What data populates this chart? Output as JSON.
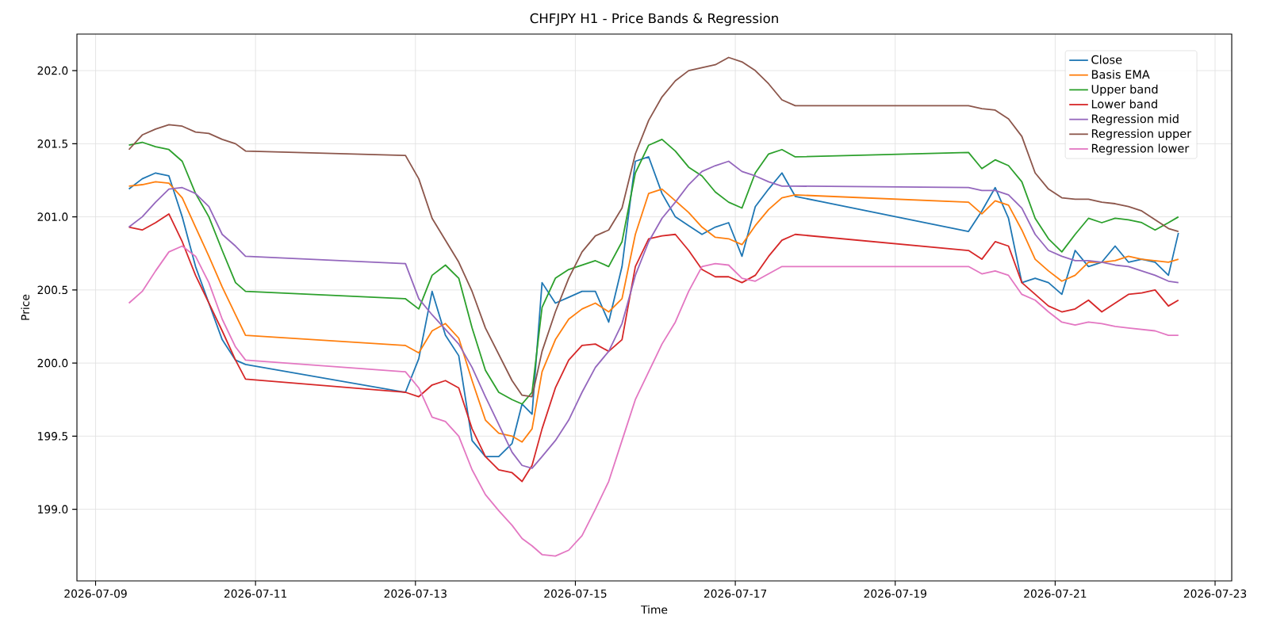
{
  "chart_data": {
    "type": "line",
    "title": "CHFJPY H1 - Price Bands & Regression",
    "xlabel": "Time",
    "ylabel": "Price",
    "x": [
      "2026-07-09T10:00",
      "2026-07-09T14:00",
      "2026-07-09T18:00",
      "2026-07-09T22:00",
      "2026-07-10T02:00",
      "2026-07-10T06:00",
      "2026-07-10T10:00",
      "2026-07-10T14:00",
      "2026-07-10T18:00",
      "2026-07-10T21:00",
      "2026-07-12T21:00",
      "2026-07-13T01:00",
      "2026-07-13T05:00",
      "2026-07-13T09:00",
      "2026-07-13T13:00",
      "2026-07-13T17:00",
      "2026-07-13T21:00",
      "2026-07-14T01:00",
      "2026-07-14T05:00",
      "2026-07-14T08:00",
      "2026-07-14T11:00",
      "2026-07-14T14:00",
      "2026-07-14T18:00",
      "2026-07-14T22:00",
      "2026-07-15T02:00",
      "2026-07-15T06:00",
      "2026-07-15T10:00",
      "2026-07-15T14:00",
      "2026-07-15T18:00",
      "2026-07-15T22:00",
      "2026-07-16T02:00",
      "2026-07-16T06:00",
      "2026-07-16T10:00",
      "2026-07-16T14:00",
      "2026-07-16T18:00",
      "2026-07-16T22:00",
      "2026-07-17T02:00",
      "2026-07-17T06:00",
      "2026-07-17T10:00",
      "2026-07-17T14:00",
      "2026-07-17T18:00",
      "2026-07-19T22:00",
      "2026-07-20T02:00",
      "2026-07-20T06:00",
      "2026-07-20T10:00",
      "2026-07-20T14:00",
      "2026-07-20T18:00",
      "2026-07-20T22:00",
      "2026-07-21T02:00",
      "2026-07-21T06:00",
      "2026-07-21T10:00",
      "2026-07-21T14:00",
      "2026-07-21T18:00",
      "2026-07-21T22:00",
      "2026-07-22T02:00",
      "2026-07-22T06:00",
      "2026-07-22T10:00",
      "2026-07-22T13:00"
    ],
    "series": [
      {
        "name": "Close",
        "color": "#1f77b4",
        "values": [
          201.19,
          201.26,
          201.3,
          201.28,
          201.0,
          200.66,
          200.41,
          200.16,
          200.02,
          199.99,
          199.8,
          200.03,
          200.49,
          200.19,
          200.05,
          199.47,
          199.36,
          199.36,
          199.45,
          199.72,
          199.65,
          200.55,
          200.41,
          200.45,
          200.49,
          200.49,
          200.28,
          200.66,
          201.38,
          201.41,
          201.16,
          201.0,
          200.94,
          200.88,
          200.93,
          200.96,
          200.73,
          201.07,
          201.19,
          201.3,
          201.14,
          200.9,
          201.04,
          201.2,
          200.99,
          200.55,
          200.58,
          200.55,
          200.47,
          200.77,
          200.66,
          200.69,
          200.8,
          200.69,
          200.71,
          200.69,
          200.6,
          200.89
        ]
      },
      {
        "name": "Basis EMA",
        "color": "#ff7f0e",
        "values": [
          201.21,
          201.22,
          201.24,
          201.23,
          201.13,
          200.93,
          200.73,
          200.52,
          200.33,
          200.19,
          200.12,
          200.07,
          200.22,
          200.27,
          200.17,
          199.88,
          199.61,
          199.52,
          199.5,
          199.46,
          199.55,
          199.94,
          200.16,
          200.3,
          200.37,
          200.41,
          200.35,
          200.44,
          200.88,
          201.16,
          201.19,
          201.11,
          201.03,
          200.93,
          200.86,
          200.85,
          200.81,
          200.94,
          201.05,
          201.13,
          201.15,
          201.1,
          201.02,
          201.11,
          201.08,
          200.91,
          200.71,
          200.63,
          200.56,
          200.6,
          200.69,
          200.69,
          200.7,
          200.73,
          200.71,
          200.7,
          200.69,
          200.71
        ]
      },
      {
        "name": "Upper band",
        "color": "#2ca02c",
        "values": [
          201.49,
          201.51,
          201.48,
          201.46,
          201.38,
          201.16,
          201.0,
          200.77,
          200.55,
          200.49,
          200.44,
          200.37,
          200.6,
          200.67,
          200.58,
          200.24,
          199.95,
          199.8,
          199.75,
          199.72,
          199.8,
          200.38,
          200.58,
          200.64,
          200.67,
          200.7,
          200.66,
          200.83,
          201.3,
          201.49,
          201.53,
          201.45,
          201.34,
          201.28,
          201.17,
          201.1,
          201.06,
          201.3,
          201.43,
          201.46,
          201.41,
          201.44,
          201.33,
          201.39,
          201.35,
          201.24,
          200.99,
          200.85,
          200.76,
          200.88,
          200.99,
          200.96,
          200.99,
          200.98,
          200.96,
          200.91,
          200.96,
          201.0
        ]
      },
      {
        "name": "Lower band",
        "color": "#d62728",
        "values": [
          200.93,
          200.91,
          200.96,
          201.02,
          200.83,
          200.6,
          200.41,
          200.22,
          200.02,
          199.89,
          199.8,
          199.77,
          199.85,
          199.88,
          199.83,
          199.55,
          199.36,
          199.27,
          199.25,
          199.19,
          199.3,
          199.55,
          199.83,
          200.02,
          200.12,
          200.13,
          200.08,
          200.16,
          200.66,
          200.85,
          200.87,
          200.88,
          200.77,
          200.64,
          200.59,
          200.59,
          200.55,
          200.6,
          200.73,
          200.84,
          200.88,
          200.77,
          200.71,
          200.83,
          200.8,
          200.55,
          200.47,
          200.39,
          200.35,
          200.37,
          200.43,
          200.35,
          200.41,
          200.47,
          200.48,
          200.5,
          200.39,
          200.43
        ]
      },
      {
        "name": "Regression mid",
        "color": "#9467bd",
        "values": [
          200.93,
          201.0,
          201.1,
          201.19,
          201.2,
          201.16,
          201.07,
          200.88,
          200.8,
          200.73,
          200.68,
          200.44,
          200.33,
          200.23,
          200.13,
          199.97,
          199.77,
          199.58,
          199.39,
          199.3,
          199.28,
          199.36,
          199.47,
          199.61,
          199.8,
          199.97,
          200.08,
          200.27,
          200.6,
          200.83,
          200.99,
          201.1,
          201.22,
          201.31,
          201.35,
          201.38,
          201.31,
          201.28,
          201.24,
          201.21,
          201.21,
          201.2,
          201.18,
          201.18,
          201.15,
          201.06,
          200.88,
          200.77,
          200.73,
          200.7,
          200.7,
          200.69,
          200.67,
          200.66,
          200.63,
          200.6,
          200.56,
          200.55
        ]
      },
      {
        "name": "Regression upper",
        "color": "#8c564b",
        "values": [
          201.46,
          201.56,
          201.6,
          201.63,
          201.62,
          201.58,
          201.57,
          201.53,
          201.5,
          201.45,
          201.42,
          201.26,
          200.99,
          200.84,
          200.69,
          200.49,
          200.24,
          200.06,
          199.88,
          199.78,
          199.77,
          200.08,
          200.35,
          200.58,
          200.76,
          200.87,
          200.91,
          201.06,
          201.43,
          201.66,
          201.82,
          201.93,
          202.0,
          202.02,
          202.04,
          202.09,
          202.06,
          202.0,
          201.91,
          201.8,
          201.76,
          201.76,
          201.74,
          201.73,
          201.67,
          201.55,
          201.3,
          201.19,
          201.13,
          201.12,
          201.12,
          201.1,
          201.09,
          201.07,
          201.04,
          200.98,
          200.92,
          200.9
        ]
      },
      {
        "name": "Regression lower",
        "color": "#e377c2",
        "values": [
          200.41,
          200.49,
          200.63,
          200.76,
          200.8,
          200.73,
          200.55,
          200.3,
          200.11,
          200.02,
          199.94,
          199.83,
          199.63,
          199.6,
          199.5,
          199.27,
          199.1,
          198.99,
          198.89,
          198.8,
          198.75,
          198.69,
          198.68,
          198.72,
          198.82,
          199.0,
          199.19,
          199.47,
          199.75,
          199.94,
          200.13,
          200.28,
          200.49,
          200.66,
          200.68,
          200.67,
          200.58,
          200.56,
          200.61,
          200.66,
          200.66,
          200.66,
          200.61,
          200.63,
          200.6,
          200.47,
          200.43,
          200.35,
          200.28,
          200.26,
          200.28,
          200.27,
          200.25,
          200.24,
          200.23,
          200.22,
          200.19,
          200.19
        ]
      }
    ],
    "xlim": [
      "2026-07-08T18:24",
      "2026-07-23T05:00"
    ],
    "xticks": [
      "2026-07-09",
      "2026-07-11",
      "2026-07-13",
      "2026-07-15",
      "2026-07-17",
      "2026-07-19",
      "2026-07-21",
      "2026-07-23"
    ],
    "ylim": [
      198.51,
      202.25
    ],
    "yticks": [
      {
        "value": 199.0,
        "label": "199.0"
      },
      {
        "value": 199.5,
        "label": "199.5"
      },
      {
        "value": 200.0,
        "label": "200.0"
      },
      {
        "value": 200.5,
        "label": "200.5"
      },
      {
        "value": 201.0,
        "label": "201.0"
      },
      {
        "value": 201.5,
        "label": "201.5"
      },
      {
        "value": 202.0,
        "label": "202.0"
      }
    ],
    "grid": true,
    "legend": "top right",
    "line_style": "solid"
  }
}
